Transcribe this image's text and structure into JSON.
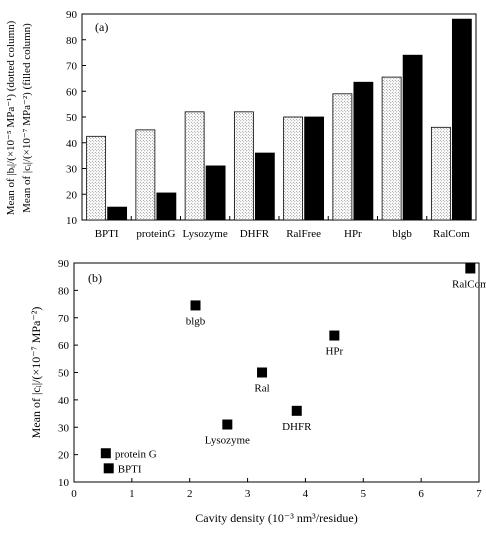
{
  "chart_data": [
    {
      "panel": "(a)",
      "type": "bar",
      "ylabel_lines": [
        "Mean of |bᵢ|/(×10⁻⁵ MPa⁻¹) (dotted column)",
        "Mean of |cᵢ|/(×10⁻⁷ MPa⁻²) (filled column)"
      ],
      "ylim": [
        10,
        90
      ],
      "yticks": [
        10,
        20,
        30,
        40,
        50,
        60,
        70,
        80,
        90
      ],
      "categories": [
        "BPTI",
        "proteinG",
        "Lysozyme",
        "DHFR",
        "RalFree",
        "HPr",
        "blgb",
        "RalCom"
      ],
      "series": [
        {
          "style": "dotted",
          "values": [
            42.5,
            45,
            52,
            52,
            50,
            59,
            65.5,
            46
          ]
        },
        {
          "style": "filled",
          "values": [
            15,
            20.5,
            31,
            36,
            50,
            63.5,
            74,
            88
          ]
        }
      ],
      "colors": {
        "filled": "#000000",
        "dotted": "#ffffff"
      },
      "grid": false
    },
    {
      "panel": "(b)",
      "type": "scatter",
      "xlabel": "Cavity density (10⁻³ nm³/residue)",
      "ylabel": "Mean of |cᵢ|/(×10⁻⁷ MPa⁻²)",
      "xlim": [
        0,
        7
      ],
      "ylim": [
        10,
        90
      ],
      "xticks": [
        0,
        1,
        2,
        3,
        4,
        5,
        6,
        7
      ],
      "yticks": [
        10,
        20,
        30,
        40,
        50,
        60,
        70,
        80,
        90
      ],
      "points": [
        {
          "label": "protein G",
          "x": 0.55,
          "y": 20.5,
          "label_pos": "right"
        },
        {
          "label": "BPTI",
          "x": 0.6,
          "y": 15,
          "label_pos": "right"
        },
        {
          "label": "blgb",
          "x": 2.1,
          "y": 74.5,
          "label_pos": "below"
        },
        {
          "label": "Lysozyme",
          "x": 2.65,
          "y": 31,
          "label_pos": "below"
        },
        {
          "label": "Ral",
          "x": 3.25,
          "y": 50,
          "label_pos": "below"
        },
        {
          "label": "DHFR",
          "x": 3.85,
          "y": 36,
          "label_pos": "below"
        },
        {
          "label": "HPr",
          "x": 4.5,
          "y": 63.5,
          "label_pos": "below"
        },
        {
          "label": "RalCom",
          "x": 6.85,
          "y": 88,
          "label_pos": "below"
        }
      ],
      "marker": "square",
      "grid": false
    }
  ]
}
